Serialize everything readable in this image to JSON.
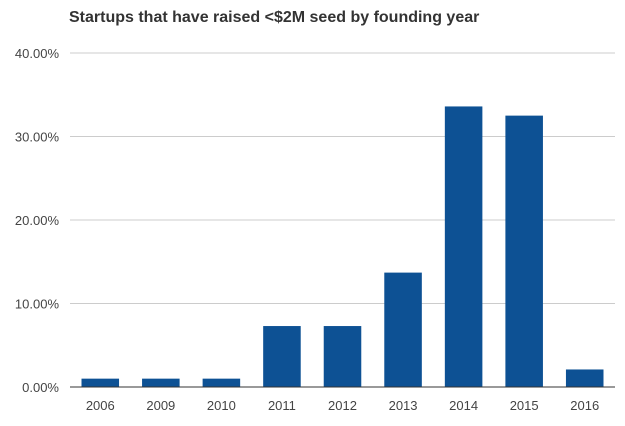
{
  "chart_data": {
    "type": "bar",
    "title": "Startups that have raised <$2M seed by founding year",
    "xlabel": "",
    "ylabel": "",
    "categories": [
      "2006",
      "2009",
      "2010",
      "2011",
      "2012",
      "2013",
      "2014",
      "2015",
      "2016"
    ],
    "values": [
      1.0,
      1.0,
      1.0,
      7.3,
      7.3,
      13.7,
      33.6,
      32.5,
      2.1
    ],
    "y_unit": "percent",
    "ylim": [
      0,
      40
    ],
    "y_ticks": [
      "0.00%",
      "10.00%",
      "20.00%",
      "30.00%",
      "40.00%"
    ],
    "grid": true,
    "legend": "none",
    "bar_color": "#0d5194",
    "grid_color": "#cccccc",
    "axis_color": "#333333"
  }
}
